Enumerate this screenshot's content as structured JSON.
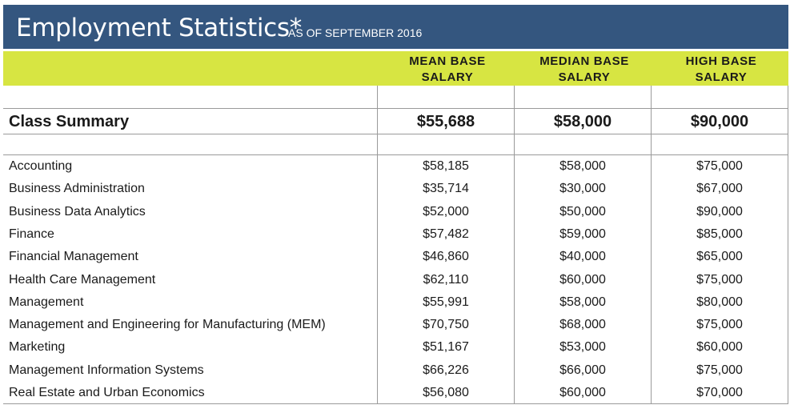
{
  "header": {
    "title": "Employment Statistics*",
    "subtitle": "AS OF SEPTEMBER 2016"
  },
  "columns": {
    "mean": "MEAN BASE\nSALARY",
    "median": "MEDIAN BASE\nSALARY",
    "high": "HIGH BASE\nSALARY"
  },
  "summary": {
    "label": "Class Summary",
    "mean": "$55,688",
    "median": "$58,000",
    "high": "$90,000"
  },
  "rows": [
    {
      "program": "Accounting",
      "mean": "$58,185",
      "median": "$58,000",
      "high": "$75,000"
    },
    {
      "program": "Business Administration",
      "mean": "$35,714",
      "median": "$30,000",
      "high": "$67,000"
    },
    {
      "program": "Business Data Analytics",
      "mean": "$52,000",
      "median": "$50,000",
      "high": "$90,000"
    },
    {
      "program": "Finance",
      "mean": "$57,482",
      "median": "$59,000",
      "high": "$85,000"
    },
    {
      "program": "Financial Management",
      "mean": "$46,860",
      "median": "$40,000",
      "high": "$65,000"
    },
    {
      "program": "Health Care Management",
      "mean": "$62,110",
      "median": "$60,000",
      "high": "$75,000"
    },
    {
      "program": "Management",
      "mean": "$55,991",
      "median": "$58,000",
      "high": "$80,000"
    },
    {
      "program": "Management and Engineering for Manufacturing (MEM)",
      "mean": "$70,750",
      "median": "$68,000",
      "high": "$75,000"
    },
    {
      "program": "Marketing",
      "mean": "$51,167",
      "median": "$53,000",
      "high": "$60,000"
    },
    {
      "program": "Management Information Systems",
      "mean": "$66,226",
      "median": "$66,000",
      "high": "$75,000"
    },
    {
      "program": "Real Estate and Urban Economics",
      "mean": "$56,080",
      "median": "$60,000",
      "high": "$70,000"
    }
  ]
}
